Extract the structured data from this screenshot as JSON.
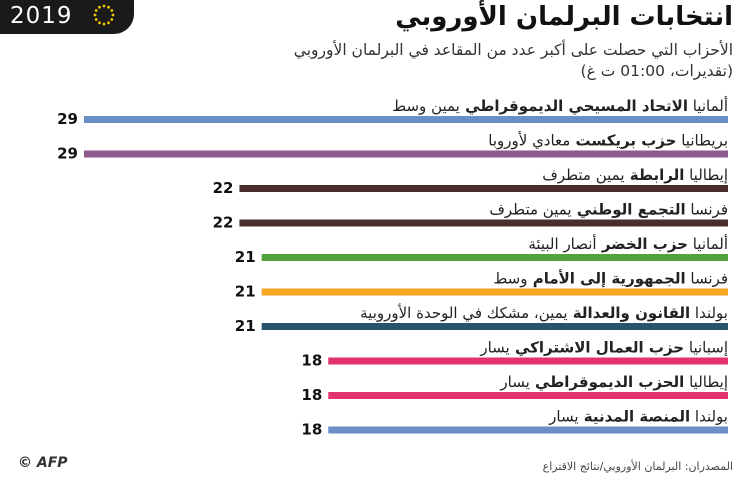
{
  "header": {
    "year": "2019",
    "title": "انتخابات البرلمان الأوروبي",
    "subtitle_line1": "الأحزاب التي حصلت على أكبر عدد من المقاعد في البرلمان الأوروبي",
    "subtitle_line2": "(تقديرات، 01:00 ت غ)"
  },
  "footer": {
    "credit": "© AFP",
    "source": "المصدران: البرلمان الأوروبي/نتائج الاقتراع"
  },
  "chart_data": {
    "type": "bar",
    "orientation": "horizontal",
    "xlim": [
      0,
      29
    ],
    "rows": [
      {
        "country": "ألمانيا",
        "party": "الاتحاد المسيحي الديموقراطي",
        "orientation": "يمين وسط",
        "seats": 29,
        "color": "#6a8fc6"
      },
      {
        "country": "بريطانيا",
        "party": "حزب بريكست",
        "orientation": "معادي لأوروبا",
        "seats": 29,
        "color": "#8c5a8c"
      },
      {
        "country": "إيطاليا",
        "party": "الرابطة",
        "orientation": "يمين متطرف",
        "seats": 22,
        "color": "#4a2e2e"
      },
      {
        "country": "فرنسا",
        "party": "التجمع الوطني",
        "orientation": "يمين متطرف",
        "seats": 22,
        "color": "#4a2e2e"
      },
      {
        "country": "ألمانيا",
        "party": "حزب الخضر",
        "orientation": "أنصار البيئة",
        "seats": 21,
        "color": "#52a13c"
      },
      {
        "country": "فرنسا",
        "party": "الجمهورية إلى الأمام",
        "orientation": "وسط",
        "seats": 21,
        "color": "#f7a722"
      },
      {
        "country": "بولندا",
        "party": "القانون والعدالة",
        "orientation": "يمين، مشكك في الوحدة الأوروبية",
        "seats": 21,
        "color": "#27546a"
      },
      {
        "country": "إسبانيا",
        "party": "حزب العمال الاشتراكي",
        "orientation": "يسار",
        "seats": 18,
        "color": "#e3336d"
      },
      {
        "country": "إيطاليا",
        "party": "الحزب الديموقراطي",
        "orientation": "يسار",
        "seats": 18,
        "color": "#e3336d"
      },
      {
        "country": "بولندا",
        "party": "المنصة المدنية",
        "orientation": "يسار",
        "seats": 18,
        "color": "#6a8fc6"
      }
    ]
  },
  "colors": {
    "badge_bg": "#1a1a1a",
    "star": "#f2c500"
  }
}
